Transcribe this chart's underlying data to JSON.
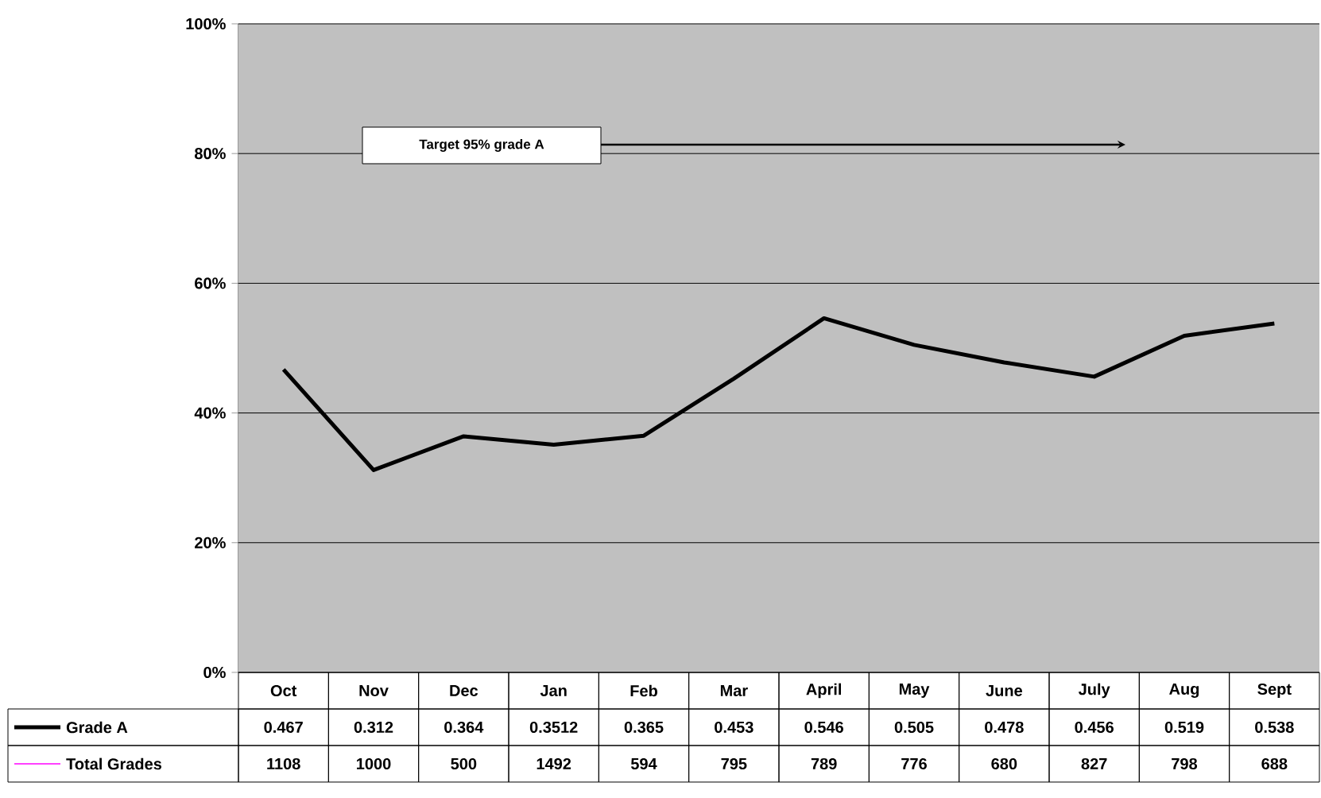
{
  "chart_data": {
    "type": "line",
    "categories": [
      "Oct",
      "Nov",
      "Dec",
      "Jan",
      "Feb",
      "Mar",
      "April",
      "May",
      "June",
      "July",
      "Aug",
      "Sept"
    ],
    "series": [
      {
        "name": "Grade A",
        "color": "#000000",
        "values": [
          0.467,
          0.312,
          0.364,
          0.3512,
          0.365,
          0.453,
          0.546,
          0.505,
          0.478,
          0.456,
          0.519,
          0.538
        ],
        "value_labels": [
          "0.467",
          "0.312",
          "0.364",
          "0.3512",
          "0.365",
          "0.453",
          "0.546",
          "0.505",
          "0.478",
          "0.456",
          "0.519",
          "0.538"
        ]
      },
      {
        "name": "Total Grades",
        "color": "#ff00ff",
        "values": [
          null,
          null,
          null,
          null,
          null,
          null,
          null,
          null,
          null,
          null,
          null,
          null
        ],
        "value_labels": [
          "1108",
          "1000",
          "500",
          "1492",
          "594",
          "795",
          "789",
          "776",
          "680",
          "827",
          "798",
          "688"
        ]
      }
    ],
    "ylim": [
      0,
      1
    ],
    "yticks": [
      {
        "value": 0,
        "label": "0%"
      },
      {
        "value": 0.2,
        "label": "20%"
      },
      {
        "value": 0.4,
        "label": "40%"
      },
      {
        "value": 0.6,
        "label": "60%"
      },
      {
        "value": 0.8,
        "label": "80%"
      },
      {
        "value": 1,
        "label": "100%"
      }
    ],
    "grid": "y",
    "legend": "bottom",
    "marker": "none",
    "line_style": "solid",
    "annotations": [
      "Target  95% grade A"
    ]
  }
}
